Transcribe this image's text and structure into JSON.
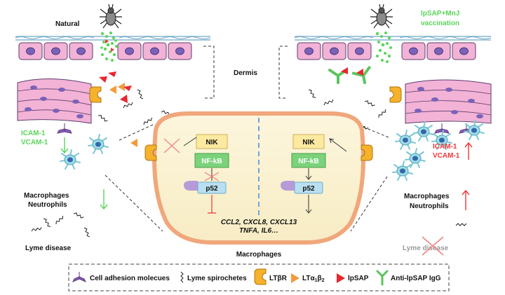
{
  "labels": {
    "natural": "Natural",
    "vaccination_line1": "lpSAP+MnJ",
    "vaccination_line2": "vaccination",
    "dermis": "Dermis",
    "icam_left": "ICAM-1",
    "vcam_left": "VCAM-1",
    "icam_right": "ICAM-1",
    "vcam_right": "VCAM-1",
    "macrophages_left": "Macrophages",
    "neutrophils_left": "Neutrophils",
    "macrophages_right": "Macrophages",
    "neutrophils_right": "Neutrophils",
    "lyme_disease_left": "Lyme disease",
    "lyme_disease_right": "Lyme disease",
    "macrophages_cell": "Macrophages",
    "genes_line1": "CCL2, CXCL8, CXCL13",
    "genes_line2": "TNFA, IL6…"
  },
  "pathway_left": {
    "nik": "NIK",
    "nfkb": "NF-kB",
    "p52": "p52"
  },
  "pathway_right": {
    "nik": "NIK",
    "nfkb": "NF-kB",
    "p52": "p52"
  },
  "legend": {
    "cell_adhesion": "Cell adhesion molecues",
    "spirochetes": "Lyme spirochetes",
    "ltbr": "LTβR",
    "lta_prefix": "LTα",
    "lta_sub1": "1",
    "lta_mid": "β",
    "lta_sub2": "2",
    "lpsap": "lpSAP",
    "anti_igg": "Anti-lpSAP IgG"
  },
  "colors": {
    "green": "#59d659",
    "red": "#f03535",
    "orange": "#f39a3c",
    "ltbr": "#f5b22a",
    "skin": "#f3b3d6",
    "nucleus": "#7a62b8",
    "cell_fill": "#fcf3d6",
    "cell_border": "#f0a77b",
    "divider": "#6ba6dc"
  }
}
